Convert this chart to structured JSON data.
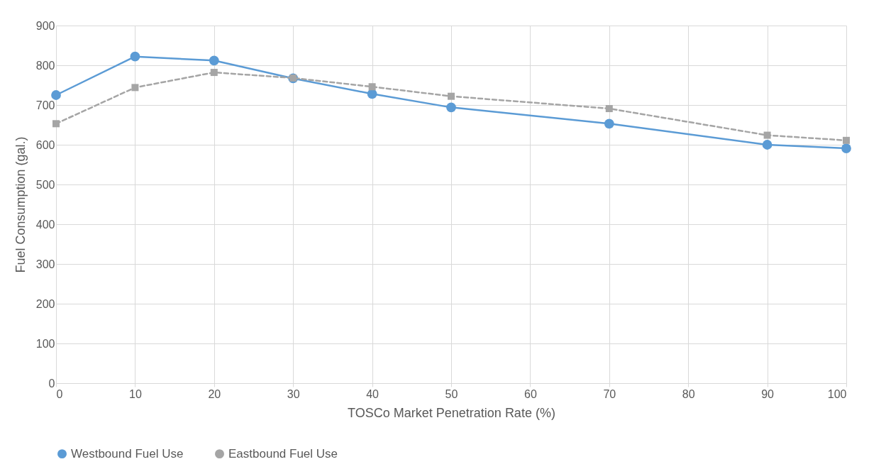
{
  "chart_data": {
    "type": "line",
    "xlabel": "TOSCo Market Penetration Rate (%)",
    "ylabel": "Fuel Consumption (gal.)",
    "x": [
      0,
      10,
      20,
      30,
      40,
      50,
      70,
      90,
      100
    ],
    "series": [
      {
        "name": "Westbound Fuel Use",
        "color": "#5b9bd5",
        "marker": "circle",
        "line_style": "solid",
        "values": [
          725,
          822,
          812,
          767,
          728,
          694,
          653,
          600,
          591
        ]
      },
      {
        "name": "Eastbound Fuel Use",
        "color": "#a5a5a5",
        "marker": "square",
        "line_style": "dashed",
        "values": [
          653,
          744,
          782,
          768,
          746,
          722,
          691,
          624,
          611
        ]
      }
    ],
    "xlim": [
      0,
      100
    ],
    "xticks": [
      0,
      10,
      20,
      30,
      40,
      50,
      60,
      70,
      80,
      90,
      100
    ],
    "ylim": [
      0,
      900
    ],
    "yticks": [
      0,
      100,
      200,
      300,
      400,
      500,
      600,
      700,
      800,
      900
    ],
    "grid": true,
    "legend": "bottom"
  }
}
